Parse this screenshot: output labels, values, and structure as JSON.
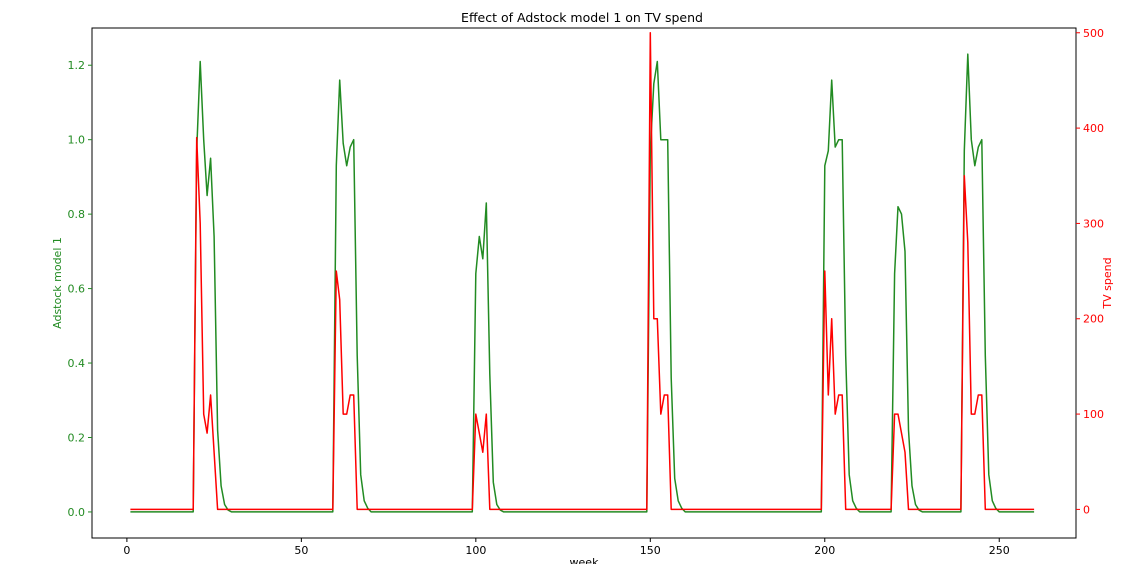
{
  "chart_data": {
    "type": "line",
    "title": "Effect of Adstock model 1 on TV spend",
    "xlabel": "week",
    "xlim": [
      -10,
      272
    ],
    "x_ticks": [
      0,
      50,
      100,
      150,
      200,
      250
    ],
    "y_left": {
      "label": "Adstock model 1",
      "color": "#228b22",
      "lim": [
        -0.07,
        1.3
      ],
      "ticks": [
        0.0,
        0.2,
        0.4,
        0.6,
        0.8,
        1.0,
        1.2
      ],
      "tick_labels": [
        "0.0",
        "0.2",
        "0.4",
        "0.6",
        "0.8",
        "1.0",
        "1.2"
      ]
    },
    "y_right": {
      "label": "TV spend",
      "color": "#ff0000",
      "lim": [
        -30,
        505
      ],
      "ticks": [
        0,
        100,
        200,
        300,
        400,
        500
      ],
      "tick_labels": [
        "0",
        "100",
        "200",
        "300",
        "400",
        "500"
      ]
    },
    "grid": false,
    "series": [
      {
        "axis": "left",
        "color": "#228b22",
        "points": [
          [
            1,
            0
          ],
          [
            19,
            0
          ],
          [
            20,
            0.97
          ],
          [
            21,
            1.21
          ],
          [
            22,
            1.0
          ],
          [
            23,
            0.85
          ],
          [
            24,
            0.95
          ],
          [
            25,
            0.74
          ],
          [
            26,
            0.22
          ],
          [
            27,
            0.07
          ],
          [
            28,
            0.02
          ],
          [
            29,
            0.005
          ],
          [
            30,
            0
          ],
          [
            59,
            0
          ],
          [
            60,
            0.93
          ],
          [
            61,
            1.16
          ],
          [
            62,
            0.99
          ],
          [
            63,
            0.93
          ],
          [
            64,
            0.98
          ],
          [
            65,
            1.0
          ],
          [
            66,
            0.42
          ],
          [
            67,
            0.1
          ],
          [
            68,
            0.03
          ],
          [
            69,
            0.01
          ],
          [
            70,
            0
          ],
          [
            99,
            0
          ],
          [
            100,
            0.64
          ],
          [
            101,
            0.74
          ],
          [
            102,
            0.68
          ],
          [
            103,
            0.83
          ],
          [
            104,
            0.37
          ],
          [
            105,
            0.08
          ],
          [
            106,
            0.02
          ],
          [
            107,
            0.005
          ],
          [
            108,
            0
          ],
          [
            149,
            0
          ],
          [
            150,
            0.97
          ],
          [
            151,
            1.15
          ],
          [
            152,
            1.21
          ],
          [
            153,
            1.0
          ],
          [
            154,
            1.0
          ],
          [
            155,
            1.0
          ],
          [
            156,
            0.36
          ],
          [
            157,
            0.09
          ],
          [
            158,
            0.03
          ],
          [
            159,
            0.01
          ],
          [
            160,
            0
          ],
          [
            199,
            0
          ],
          [
            200,
            0.93
          ],
          [
            201,
            0.97
          ],
          [
            202,
            1.16
          ],
          [
            203,
            0.98
          ],
          [
            204,
            1.0
          ],
          [
            205,
            1.0
          ],
          [
            206,
            0.42
          ],
          [
            207,
            0.1
          ],
          [
            208,
            0.03
          ],
          [
            209,
            0.01
          ],
          [
            210,
            0
          ],
          [
            219,
            0
          ],
          [
            220,
            0.64
          ],
          [
            221,
            0.82
          ],
          [
            222,
            0.8
          ],
          [
            223,
            0.7
          ],
          [
            224,
            0.22
          ],
          [
            225,
            0.07
          ],
          [
            226,
            0.02
          ],
          [
            227,
            0.005
          ],
          [
            228,
            0
          ],
          [
            239,
            0
          ],
          [
            240,
            0.97
          ],
          [
            241,
            1.23
          ],
          [
            242,
            1.0
          ],
          [
            243,
            0.93
          ],
          [
            244,
            0.98
          ],
          [
            245,
            1.0
          ],
          [
            246,
            0.42
          ],
          [
            247,
            0.1
          ],
          [
            248,
            0.03
          ],
          [
            249,
            0.01
          ],
          [
            250,
            0
          ],
          [
            260,
            0
          ]
        ]
      },
      {
        "axis": "right",
        "color": "#ff0000",
        "points": [
          [
            1,
            0
          ],
          [
            19,
            0
          ],
          [
            20,
            390
          ],
          [
            21,
            300
          ],
          [
            22,
            100
          ],
          [
            23,
            80
          ],
          [
            24,
            120
          ],
          [
            25,
            60
          ],
          [
            26,
            0
          ],
          [
            59,
            0
          ],
          [
            60,
            250
          ],
          [
            61,
            220
          ],
          [
            62,
            100
          ],
          [
            63,
            100
          ],
          [
            64,
            120
          ],
          [
            65,
            120
          ],
          [
            66,
            0
          ],
          [
            99,
            0
          ],
          [
            100,
            100
          ],
          [
            101,
            80
          ],
          [
            102,
            60
          ],
          [
            103,
            100
          ],
          [
            104,
            0
          ],
          [
            149,
            0
          ],
          [
            150,
            500
          ],
          [
            151,
            200
          ],
          [
            152,
            200
          ],
          [
            153,
            100
          ],
          [
            154,
            120
          ],
          [
            155,
            120
          ],
          [
            156,
            0
          ],
          [
            199,
            0
          ],
          [
            200,
            250
          ],
          [
            201,
            120
          ],
          [
            202,
            200
          ],
          [
            203,
            100
          ],
          [
            204,
            120
          ],
          [
            205,
            120
          ],
          [
            206,
            0
          ],
          [
            219,
            0
          ],
          [
            220,
            100
          ],
          [
            221,
            100
          ],
          [
            222,
            80
          ],
          [
            223,
            60
          ],
          [
            224,
            0
          ],
          [
            239,
            0
          ],
          [
            240,
            350
          ],
          [
            241,
            280
          ],
          [
            242,
            100
          ],
          [
            243,
            100
          ],
          [
            244,
            120
          ],
          [
            245,
            120
          ],
          [
            246,
            0
          ],
          [
            260,
            0
          ]
        ]
      }
    ]
  }
}
